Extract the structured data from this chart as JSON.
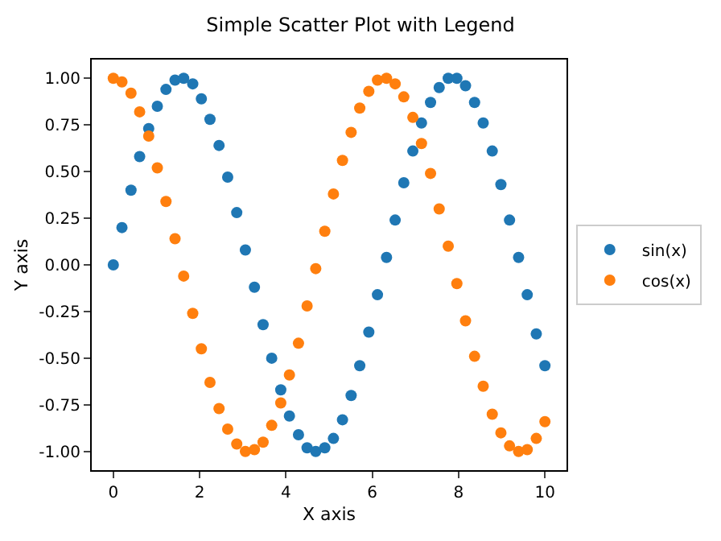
{
  "chart_data": {
    "type": "scatter",
    "title": "Simple Scatter Plot with Legend",
    "xlabel": "X axis",
    "ylabel": "Y axis",
    "x": [
      0,
      0.2,
      0.41,
      0.61,
      0.82,
      1.02,
      1.22,
      1.43,
      1.63,
      1.84,
      2.04,
      2.24,
      2.45,
      2.65,
      2.86,
      3.06,
      3.27,
      3.47,
      3.67,
      3.88,
      4.08,
      4.29,
      4.49,
      4.69,
      4.9,
      5.1,
      5.31,
      5.51,
      5.71,
      5.92,
      6.12,
      6.33,
      6.53,
      6.73,
      6.94,
      7.14,
      7.35,
      7.55,
      7.76,
      7.96,
      8.16,
      8.37,
      8.57,
      8.78,
      8.98,
      9.18,
      9.39,
      9.59,
      9.8,
      10
    ],
    "series": [
      {
        "name": "sin(x)",
        "color": "#1f77b4",
        "values": [
          0,
          0.2,
          0.4,
          0.58,
          0.73,
          0.85,
          0.94,
          0.99,
          1,
          0.97,
          0.89,
          0.78,
          0.64,
          0.47,
          0.28,
          0.08,
          -0.12,
          -0.32,
          -0.5,
          -0.67,
          -0.81,
          -0.91,
          -0.98,
          -1,
          -0.98,
          -0.93,
          -0.83,
          -0.7,
          -0.54,
          -0.36,
          -0.16,
          0.04,
          0.24,
          0.44,
          0.61,
          0.76,
          0.87,
          0.95,
          1,
          1,
          0.96,
          0.87,
          0.76,
          0.61,
          0.43,
          0.24,
          0.04,
          -0.16,
          -0.37,
          -0.54
        ]
      },
      {
        "name": "cos(x)",
        "color": "#ff7f0e",
        "values": [
          1,
          0.98,
          0.92,
          0.82,
          0.69,
          0.52,
          0.34,
          0.14,
          -0.06,
          -0.26,
          -0.45,
          -0.63,
          -0.77,
          -0.88,
          -0.96,
          -1,
          -0.99,
          -0.95,
          -0.86,
          -0.74,
          -0.59,
          -0.42,
          -0.22,
          -0.02,
          0.18,
          0.38,
          0.56,
          0.71,
          0.84,
          0.93,
          0.99,
          1,
          0.97,
          0.9,
          0.79,
          0.65,
          0.49,
          0.3,
          0.1,
          -0.1,
          -0.3,
          -0.49,
          -0.65,
          -0.8,
          -0.9,
          -0.97,
          -1,
          -0.99,
          -0.93,
          -0.84
        ]
      }
    ],
    "xlim": [
      -0.5,
      10.5
    ],
    "xticks": [
      0,
      2,
      4,
      6,
      8,
      10
    ],
    "ylim": [
      -1.1,
      1.1
    ],
    "yticks": [
      {
        "value": -1,
        "label": "-1.00"
      },
      {
        "value": -0.75,
        "label": "-0.75"
      },
      {
        "value": -0.5,
        "label": "-0.50"
      },
      {
        "value": -0.25,
        "label": "-0.25"
      },
      {
        "value": 0,
        "label": "0.00"
      },
      {
        "value": 0.25,
        "label": "0.25"
      },
      {
        "value": 0.5,
        "label": "0.50"
      },
      {
        "value": 0.75,
        "label": "0.75"
      },
      {
        "value": 1,
        "label": "1.00"
      }
    ],
    "grid": false,
    "legend": "right",
    "marker": "circle"
  }
}
